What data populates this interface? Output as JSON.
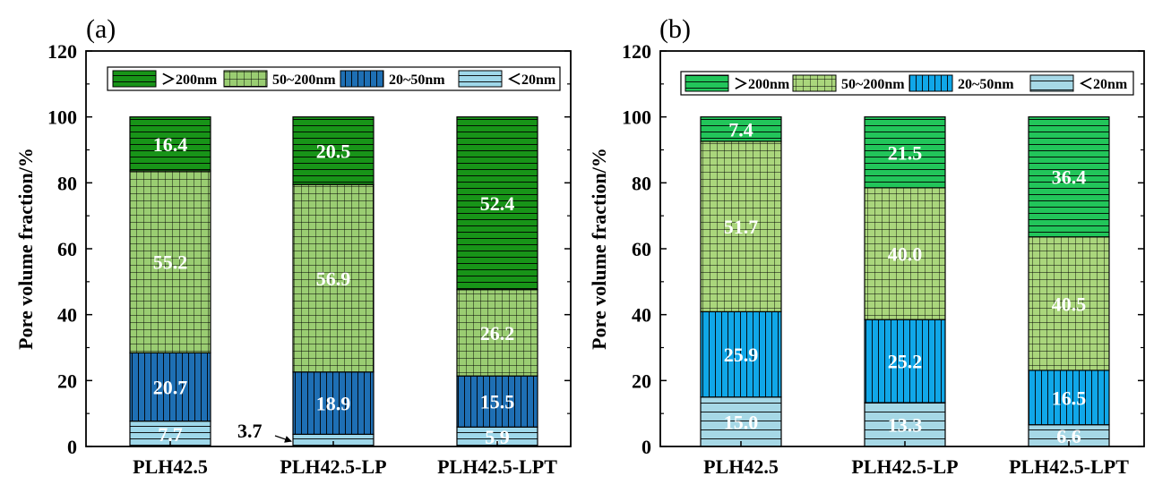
{
  "chart_data": [
    {
      "type": "bar",
      "stacked": true,
      "panel_label": "(a)",
      "ylabel": "Pore volume fraction/%",
      "xlabel": "",
      "ylim": [
        0,
        120
      ],
      "yticks": [
        "0",
        "20",
        "40",
        "60",
        "80",
        "100",
        "120"
      ],
      "categories": [
        "PLH42.5",
        "PLH42.5-LP",
        "PLH42.5-LPT"
      ],
      "series": [
        {
          "name": "<20nm",
          "values": [
            7.7,
            3.7,
            5.9
          ],
          "color": "#9fd8ea"
        },
        {
          "name": "20~50nm",
          "values": [
            20.7,
            18.9,
            15.5
          ],
          "color": "#1e6fb4"
        },
        {
          "name": "50~200nm",
          "values": [
            55.2,
            56.9,
            26.2
          ],
          "color": "#9acd72"
        },
        {
          "name": ">200nm",
          "values": [
            16.4,
            20.5,
            52.4
          ],
          "color": "#189418"
        }
      ],
      "legend_labels": [
        "＞200nm",
        "50~200nm",
        "20~50nm",
        "＜20nm"
      ],
      "segment_labels": [
        [
          "7.7",
          "20.7",
          "55.2",
          "16.4"
        ],
        [
          "3.7",
          "18.9",
          "56.9",
          "20.5"
        ],
        [
          "5.9",
          "15.5",
          "26.2",
          "52.4"
        ]
      ]
    },
    {
      "type": "bar",
      "stacked": true,
      "panel_label": "(b)",
      "ylabel": "Pore volume fraction/%",
      "xlabel": "",
      "ylim": [
        0,
        120
      ],
      "yticks": [
        "0",
        "20",
        "40",
        "60",
        "80",
        "100",
        "120"
      ],
      "categories": [
        "PLH42.5",
        "PLH42.5-LP",
        "PLH42.5-LPT"
      ],
      "series": [
        {
          "name": "<20nm",
          "values": [
            15.0,
            13.3,
            6.6
          ],
          "color": "#a6d8e6"
        },
        {
          "name": "20~50nm",
          "values": [
            25.9,
            25.2,
            16.5
          ],
          "color": "#10a7e8"
        },
        {
          "name": "50~200nm",
          "values": [
            51.7,
            40.0,
            40.5
          ],
          "color": "#aad67c"
        },
        {
          "name": ">200nm",
          "values": [
            7.4,
            21.5,
            36.4
          ],
          "color": "#22c55a"
        }
      ],
      "legend_labels": [
        "＞200nm",
        "50~200nm",
        "20~50nm",
        "＜20nm"
      ],
      "segment_labels": [
        [
          "15.0",
          "25.9",
          "51.7",
          "7.4"
        ],
        [
          "13.3",
          "25.2",
          "40.0",
          "21.5"
        ],
        [
          "6.6",
          "16.5",
          "40.5",
          "36.4"
        ]
      ]
    }
  ]
}
